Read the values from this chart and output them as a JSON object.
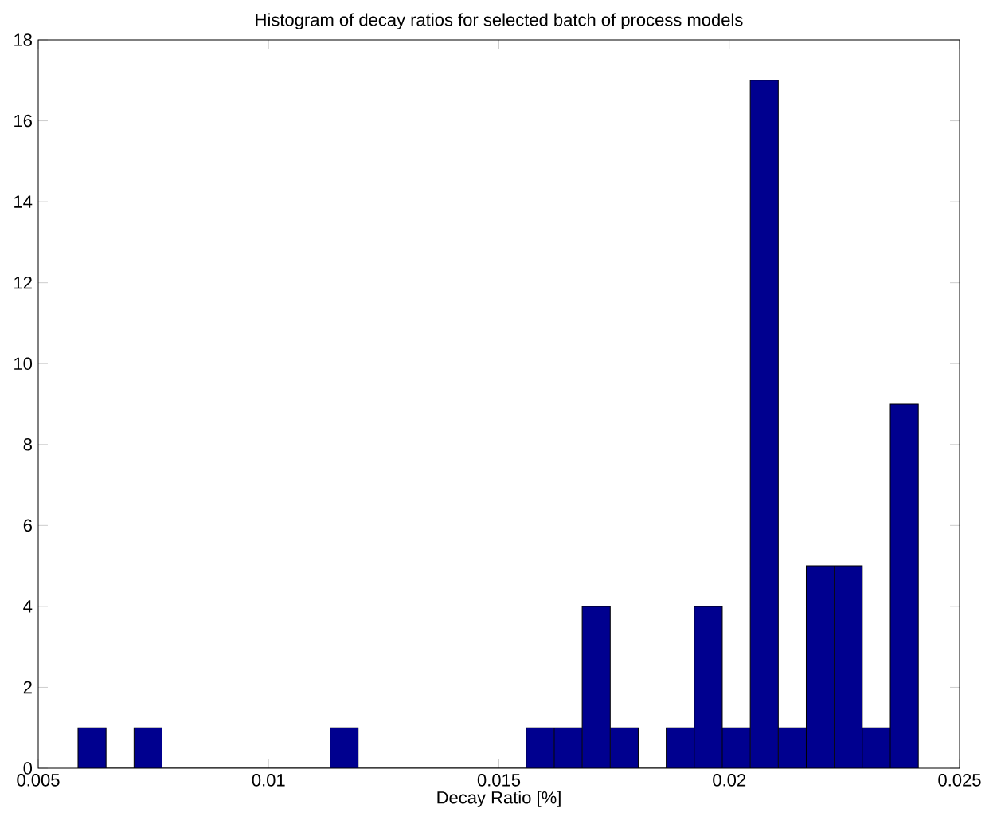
{
  "chart_data": {
    "type": "histogram",
    "title": "Histogram of decay ratios for selected batch of process models",
    "xlabel": "Decay Ratio [%]",
    "bins": [
      0.005864,
      0.006472,
      0.00708,
      0.007688,
      0.008296,
      0.008904,
      0.009512,
      0.01012,
      0.010728,
      0.011336,
      0.011944,
      0.012552,
      0.01316,
      0.013768,
      0.014376,
      0.014984,
      0.015592,
      0.0162,
      0.016808,
      0.017416,
      0.018024,
      0.018632,
      0.01924,
      0.019848,
      0.020456,
      0.021064,
      0.021672,
      0.02228,
      0.022888,
      0.023496,
      0.024104
    ],
    "values": [
      1,
      0,
      1,
      0,
      0,
      0,
      0,
      0,
      0,
      1,
      0,
      0,
      0,
      0,
      0,
      0,
      1,
      1,
      4,
      1,
      0,
      1,
      4,
      1,
      17,
      1,
      5,
      5,
      1,
      9
    ],
    "color": "#00008f",
    "xlim": [
      0.005,
      0.025
    ],
    "ylim": [
      0,
      18
    ],
    "xticks": [
      0.005,
      0.01,
      0.015,
      0.02,
      0.025
    ],
    "yticks": [
      0,
      2,
      4,
      6,
      8,
      10,
      12,
      14,
      16,
      18
    ],
    "grid": false
  }
}
